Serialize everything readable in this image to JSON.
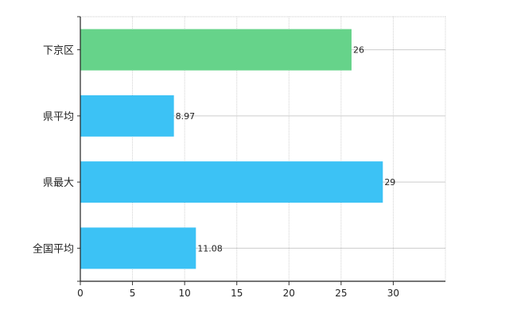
{
  "chart_data": {
    "type": "bar",
    "orientation": "horizontal",
    "title": "",
    "xlabel": "",
    "ylabel": "",
    "categories": [
      "下京区",
      "県平均",
      "県最大",
      "全国平均"
    ],
    "values": [
      26,
      8.97,
      29,
      11.08
    ],
    "value_labels": [
      "26",
      "8.97",
      "29",
      "11.08"
    ],
    "bar_colors": [
      "#66d38a",
      "#3cc2f5",
      "#3cc2f5",
      "#3cc2f5"
    ],
    "xlim": [
      0,
      35
    ],
    "x_ticks": [
      0,
      5,
      10,
      15,
      20,
      25,
      30
    ],
    "x_tick_labels": [
      "0",
      "5",
      "10",
      "15",
      "20",
      "25",
      "30"
    ],
    "grid": true,
    "grid_style": "dotted",
    "legend": "none"
  }
}
